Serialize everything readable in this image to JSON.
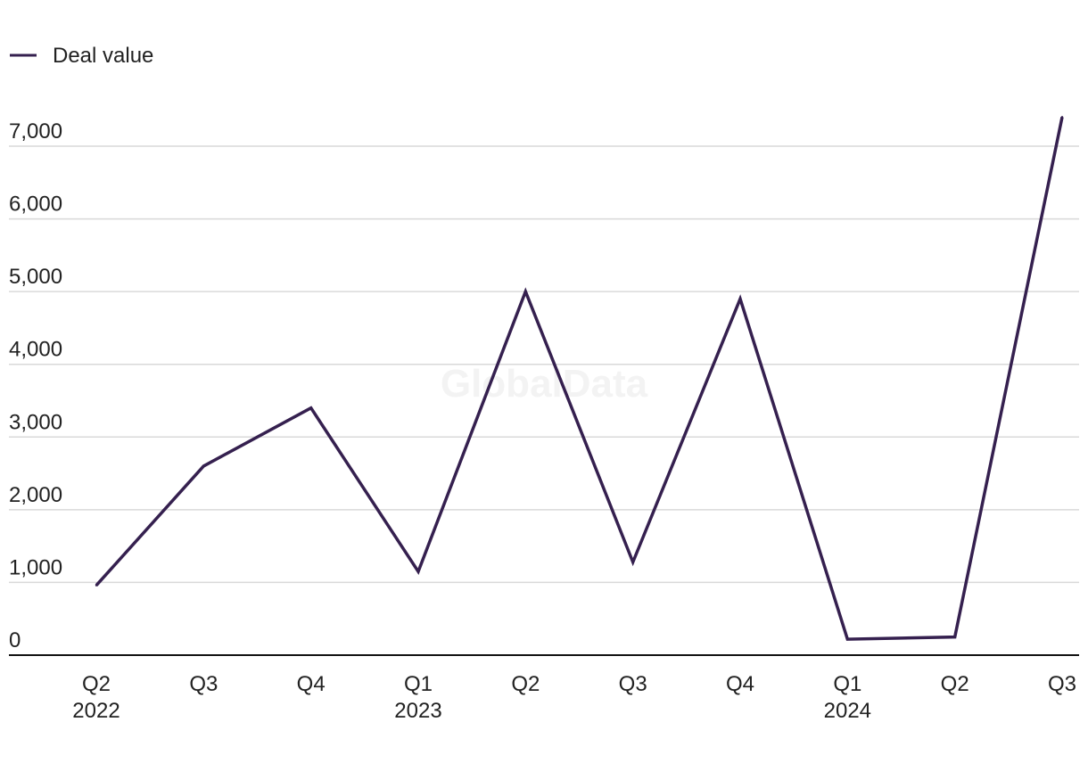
{
  "watermark": "GlobalData",
  "chart_data": {
    "type": "line",
    "title": "",
    "xlabel": "",
    "ylabel": "",
    "categories": [
      {
        "quarter": "Q2",
        "year": "2022"
      },
      {
        "quarter": "Q3",
        "year": ""
      },
      {
        "quarter": "Q4",
        "year": ""
      },
      {
        "quarter": "Q1",
        "year": "2023"
      },
      {
        "quarter": "Q2",
        "year": ""
      },
      {
        "quarter": "Q3",
        "year": ""
      },
      {
        "quarter": "Q4",
        "year": ""
      },
      {
        "quarter": "Q1",
        "year": "2024"
      },
      {
        "quarter": "Q2",
        "year": ""
      },
      {
        "quarter": "Q3",
        "year": ""
      }
    ],
    "series": [
      {
        "name": "Deal value",
        "color": "#35204f",
        "values": [
          960,
          2600,
          3400,
          1150,
          5000,
          1280,
          4900,
          220,
          250,
          7400
        ]
      }
    ],
    "ylim": [
      0,
      7000
    ],
    "yticks": [
      {
        "value": 0,
        "label": "0"
      },
      {
        "value": 1000,
        "label": "1,000"
      },
      {
        "value": 2000,
        "label": "2,000"
      },
      {
        "value": 3000,
        "label": "3,000"
      },
      {
        "value": 4000,
        "label": "4,000"
      },
      {
        "value": 5000,
        "label": "5,000"
      },
      {
        "value": 6000,
        "label": "6,000"
      },
      {
        "value": 7000,
        "label": "7,000"
      }
    ],
    "grid": true,
    "legend": "top-left"
  }
}
